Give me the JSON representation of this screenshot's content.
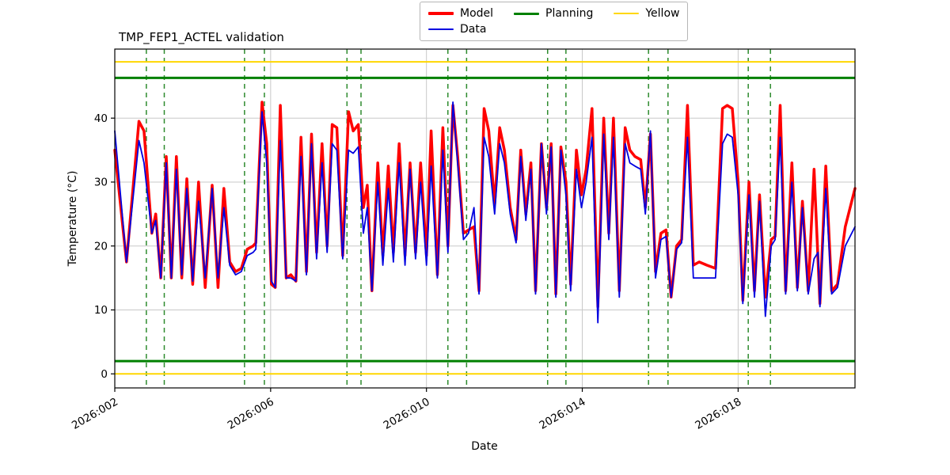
{
  "title": "TMP_FEP1_ACTEL validation",
  "chart_data": {
    "type": "line",
    "title": "TMP_FEP1_ACTEL validation",
    "xlabel": "Date",
    "ylabel": "Temperature (°C)",
    "grid": true,
    "legend_position": "top-center",
    "xlim": [
      2,
      21
    ],
    "ylim": [
      -2.2,
      50.8
    ],
    "x_ticks": [
      {
        "value": 2,
        "label": "2026:002"
      },
      {
        "value": 6,
        "label": "2026:006"
      },
      {
        "value": 10,
        "label": "2026:010"
      },
      {
        "value": 14,
        "label": "2026:014"
      },
      {
        "value": 18,
        "label": "2026:018"
      }
    ],
    "y_ticks": [
      0,
      10,
      20,
      30,
      40
    ],
    "legend": [
      {
        "label": "Model",
        "color": "#ff0000",
        "line_width": 4
      },
      {
        "label": "Data",
        "color": "#0000e0",
        "line_width": 2
      },
      {
        "label": "Planning",
        "color": "#008000",
        "line_width": 3
      },
      {
        "label": "Yellow",
        "color": "#ffd700",
        "line_width": 2
      }
    ],
    "h_lines": [
      {
        "name": "yellow-upper",
        "y": 48.8,
        "color": "#ffd700",
        "width": 2
      },
      {
        "name": "planning-upper",
        "y": 46.3,
        "color": "#008000",
        "width": 3
      },
      {
        "name": "planning-lower",
        "y": 2.0,
        "color": "#008000",
        "width": 3
      },
      {
        "name": "yellow-lower",
        "y": 0.0,
        "color": "#ffd700",
        "width": 2
      }
    ],
    "v_lines": {
      "color": "#2e8b2e",
      "style": "dashed",
      "width": 1.5,
      "x": [
        2.81,
        3.27,
        5.33,
        5.84,
        7.96,
        8.32,
        10.55,
        11.03,
        13.11,
        13.58,
        15.7,
        16.2,
        18.26,
        18.83
      ]
    },
    "series": [
      {
        "name": "Model",
        "color": "#ff0000",
        "width": 3.5,
        "points": [
          [
            2.0,
            35
          ],
          [
            2.3,
            17.5
          ],
          [
            2.62,
            39.5
          ],
          [
            2.75,
            38
          ],
          [
            2.95,
            22
          ],
          [
            3.05,
            25
          ],
          [
            3.18,
            15
          ],
          [
            3.32,
            34
          ],
          [
            3.45,
            15
          ],
          [
            3.58,
            34
          ],
          [
            3.72,
            15
          ],
          [
            3.85,
            30.5
          ],
          [
            4.0,
            14
          ],
          [
            4.15,
            30
          ],
          [
            4.32,
            13.5
          ],
          [
            4.5,
            29.5
          ],
          [
            4.65,
            13.5
          ],
          [
            4.8,
            29
          ],
          [
            4.95,
            17.5
          ],
          [
            5.1,
            16
          ],
          [
            5.25,
            16.5
          ],
          [
            5.4,
            19.5
          ],
          [
            5.55,
            20
          ],
          [
            5.62,
            20.5
          ],
          [
            5.78,
            42.5
          ],
          [
            5.9,
            36
          ],
          [
            6.02,
            14
          ],
          [
            6.12,
            13.5
          ],
          [
            6.25,
            42
          ],
          [
            6.4,
            15
          ],
          [
            6.52,
            15.5
          ],
          [
            6.65,
            14.5
          ],
          [
            6.78,
            37
          ],
          [
            6.92,
            16
          ],
          [
            7.05,
            37.5
          ],
          [
            7.18,
            19
          ],
          [
            7.32,
            36
          ],
          [
            7.45,
            20
          ],
          [
            7.58,
            39
          ],
          [
            7.7,
            38.5
          ],
          [
            7.85,
            18.5
          ],
          [
            8.0,
            41
          ],
          [
            8.12,
            38
          ],
          [
            8.25,
            39
          ],
          [
            8.38,
            26
          ],
          [
            8.48,
            29.5
          ],
          [
            8.6,
            13
          ],
          [
            8.75,
            33
          ],
          [
            8.88,
            18.5
          ],
          [
            9.02,
            32.5
          ],
          [
            9.15,
            19
          ],
          [
            9.3,
            36
          ],
          [
            9.45,
            18.5
          ],
          [
            9.58,
            33
          ],
          [
            9.72,
            19
          ],
          [
            9.85,
            33
          ],
          [
            10.0,
            18.5
          ],
          [
            10.12,
            38
          ],
          [
            10.28,
            15.5
          ],
          [
            10.42,
            38.5
          ],
          [
            10.55,
            20
          ],
          [
            10.68,
            42
          ],
          [
            10.8,
            34
          ],
          [
            10.95,
            22
          ],
          [
            11.08,
            22.5
          ],
          [
            11.22,
            23
          ],
          [
            11.35,
            13
          ],
          [
            11.48,
            41.5
          ],
          [
            11.6,
            38
          ],
          [
            11.75,
            26.5
          ],
          [
            11.88,
            38.5
          ],
          [
            12.0,
            35
          ],
          [
            12.15,
            26
          ],
          [
            12.3,
            21
          ],
          [
            12.42,
            35
          ],
          [
            12.55,
            25
          ],
          [
            12.68,
            33
          ],
          [
            12.8,
            13
          ],
          [
            12.95,
            36
          ],
          [
            13.08,
            26
          ],
          [
            13.2,
            36
          ],
          [
            13.32,
            12.5
          ],
          [
            13.45,
            35.5
          ],
          [
            13.58,
            30
          ],
          [
            13.7,
            14
          ],
          [
            13.85,
            35
          ],
          [
            13.98,
            28
          ],
          [
            14.1,
            32
          ],
          [
            14.25,
            41.5
          ],
          [
            14.4,
            10.5
          ],
          [
            14.55,
            40
          ],
          [
            14.68,
            22
          ],
          [
            14.8,
            40
          ],
          [
            14.95,
            13
          ],
          [
            15.1,
            38.5
          ],
          [
            15.22,
            35
          ],
          [
            15.35,
            34
          ],
          [
            15.5,
            33.5
          ],
          [
            15.62,
            26
          ],
          [
            15.75,
            37.5
          ],
          [
            15.88,
            16
          ],
          [
            16.02,
            22
          ],
          [
            16.15,
            22.5
          ],
          [
            16.28,
            12
          ],
          [
            16.42,
            20
          ],
          [
            16.55,
            21
          ],
          [
            16.7,
            42
          ],
          [
            16.85,
            17
          ],
          [
            17.0,
            17.5
          ],
          [
            17.2,
            17
          ],
          [
            17.42,
            16.5
          ],
          [
            17.6,
            41.5
          ],
          [
            17.72,
            42
          ],
          [
            17.85,
            41.5
          ],
          [
            18.0,
            30
          ],
          [
            18.12,
            11.5
          ],
          [
            18.28,
            30
          ],
          [
            18.42,
            13
          ],
          [
            18.55,
            28
          ],
          [
            18.7,
            12
          ],
          [
            18.85,
            21
          ],
          [
            18.95,
            21.5
          ],
          [
            19.08,
            42
          ],
          [
            19.22,
            13
          ],
          [
            19.38,
            33
          ],
          [
            19.52,
            13.5
          ],
          [
            19.65,
            27
          ],
          [
            19.8,
            13
          ],
          [
            19.95,
            32
          ],
          [
            20.1,
            11
          ],
          [
            20.25,
            32.5
          ],
          [
            20.4,
            13
          ],
          [
            20.55,
            14
          ],
          [
            20.75,
            23
          ],
          [
            21.0,
            29
          ]
        ]
      },
      {
        "name": "Data",
        "color": "#0000e0",
        "width": 1.8,
        "points": [
          [
            2.0,
            38
          ],
          [
            2.3,
            17.5
          ],
          [
            2.62,
            36.5
          ],
          [
            2.75,
            33
          ],
          [
            2.95,
            22
          ],
          [
            3.05,
            24
          ],
          [
            3.18,
            15
          ],
          [
            3.32,
            33
          ],
          [
            3.45,
            15
          ],
          [
            3.58,
            32
          ],
          [
            3.72,
            15.5
          ],
          [
            3.85,
            29
          ],
          [
            4.0,
            14.5
          ],
          [
            4.15,
            27
          ],
          [
            4.32,
            15
          ],
          [
            4.5,
            29
          ],
          [
            4.65,
            15
          ],
          [
            4.8,
            26
          ],
          [
            4.95,
            17
          ],
          [
            5.1,
            15.5
          ],
          [
            5.25,
            16
          ],
          [
            5.4,
            18.5
          ],
          [
            5.55,
            19
          ],
          [
            5.62,
            19.5
          ],
          [
            5.78,
            41
          ],
          [
            5.9,
            33
          ],
          [
            6.02,
            14.5
          ],
          [
            6.12,
            13.5
          ],
          [
            6.25,
            36.5
          ],
          [
            6.4,
            15
          ],
          [
            6.52,
            15
          ],
          [
            6.65,
            14.5
          ],
          [
            6.78,
            34
          ],
          [
            6.92,
            15.5
          ],
          [
            7.05,
            36
          ],
          [
            7.18,
            18
          ],
          [
            7.32,
            33
          ],
          [
            7.45,
            19
          ],
          [
            7.58,
            36
          ],
          [
            7.7,
            35
          ],
          [
            7.85,
            18
          ],
          [
            8.0,
            35
          ],
          [
            8.12,
            34.5
          ],
          [
            8.25,
            35.5
          ],
          [
            8.38,
            22
          ],
          [
            8.48,
            26
          ],
          [
            8.6,
            13
          ],
          [
            8.75,
            30
          ],
          [
            8.88,
            17
          ],
          [
            9.02,
            29
          ],
          [
            9.15,
            17.5
          ],
          [
            9.3,
            33
          ],
          [
            9.45,
            17
          ],
          [
            9.58,
            32
          ],
          [
            9.72,
            18
          ],
          [
            9.85,
            30
          ],
          [
            10.0,
            17
          ],
          [
            10.12,
            32.5
          ],
          [
            10.28,
            15
          ],
          [
            10.42,
            35
          ],
          [
            10.55,
            19
          ],
          [
            10.68,
            42.5
          ],
          [
            10.8,
            33
          ],
          [
            10.95,
            21
          ],
          [
            11.08,
            22
          ],
          [
            11.22,
            26
          ],
          [
            11.35,
            12.5
          ],
          [
            11.48,
            37
          ],
          [
            11.6,
            34
          ],
          [
            11.75,
            25
          ],
          [
            11.88,
            36
          ],
          [
            12.0,
            33
          ],
          [
            12.15,
            25
          ],
          [
            12.3,
            20.5
          ],
          [
            12.42,
            34
          ],
          [
            12.55,
            24
          ],
          [
            12.68,
            32
          ],
          [
            12.8,
            12.5
          ],
          [
            12.95,
            36
          ],
          [
            13.08,
            25
          ],
          [
            13.2,
            35.5
          ],
          [
            13.32,
            12
          ],
          [
            13.45,
            35
          ],
          [
            13.58,
            28
          ],
          [
            13.7,
            13
          ],
          [
            13.85,
            32
          ],
          [
            13.98,
            26
          ],
          [
            14.1,
            30
          ],
          [
            14.25,
            37
          ],
          [
            14.4,
            8
          ],
          [
            14.55,
            37.5
          ],
          [
            14.68,
            21
          ],
          [
            14.8,
            37
          ],
          [
            14.95,
            12
          ],
          [
            15.1,
            36
          ],
          [
            15.22,
            33
          ],
          [
            15.35,
            32.5
          ],
          [
            15.5,
            32
          ],
          [
            15.62,
            25
          ],
          [
            15.75,
            38
          ],
          [
            15.88,
            15
          ],
          [
            16.02,
            21
          ],
          [
            16.15,
            21.5
          ],
          [
            16.28,
            12
          ],
          [
            16.42,
            19.5
          ],
          [
            16.55,
            20.5
          ],
          [
            16.7,
            37
          ],
          [
            16.85,
            15
          ],
          [
            17.0,
            15
          ],
          [
            17.2,
            15
          ],
          [
            17.42,
            15
          ],
          [
            17.6,
            36
          ],
          [
            17.72,
            37.5
          ],
          [
            17.85,
            37
          ],
          [
            18.0,
            28
          ],
          [
            18.12,
            11
          ],
          [
            18.28,
            28
          ],
          [
            18.42,
            12
          ],
          [
            18.55,
            27
          ],
          [
            18.7,
            9
          ],
          [
            18.85,
            20
          ],
          [
            18.95,
            21
          ],
          [
            19.08,
            37
          ],
          [
            19.22,
            12.5
          ],
          [
            19.38,
            30
          ],
          [
            19.52,
            13
          ],
          [
            19.65,
            26
          ],
          [
            19.8,
            12.5
          ],
          [
            19.95,
            18
          ],
          [
            20.05,
            19
          ],
          [
            20.1,
            10.5
          ],
          [
            20.25,
            29
          ],
          [
            20.4,
            12.5
          ],
          [
            20.55,
            13.5
          ],
          [
            20.75,
            20
          ],
          [
            21.0,
            23
          ]
        ]
      }
    ]
  }
}
